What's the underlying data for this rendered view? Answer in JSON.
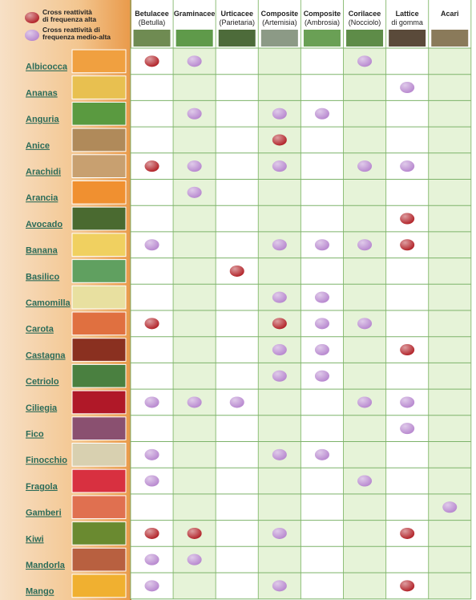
{
  "legend": [
    {
      "text": "Cross reattività\ndi frequenza alta",
      "color": "#b3262c"
    },
    {
      "text": "Cross reattività di\nfrequenza medio-alta",
      "color": "#b98ad0"
    }
  ],
  "columns": [
    {
      "name": "Betulacee",
      "sub": "(Betulla)"
    },
    {
      "name": "Graminacee"
    },
    {
      "name": "Urticacee",
      "sub": "(Parietaria)"
    },
    {
      "name": "Composite",
      "sub": "(Artemisia)"
    },
    {
      "name": "Composite",
      "sub": "(Ambrosia)"
    },
    {
      "name": "Corilacee",
      "sub": "(Nocciolo)"
    },
    {
      "name": "Lattice",
      "sub": "di gomma"
    },
    {
      "name": "Acari"
    }
  ],
  "rows": [
    {
      "name": "Albicocca",
      "cells": [
        0,
        1,
        null,
        null,
        null,
        1,
        null,
        null
      ]
    },
    {
      "name": "Ananas",
      "cells": [
        null,
        null,
        null,
        null,
        null,
        null,
        1,
        null
      ]
    },
    {
      "name": "Anguria",
      "cells": [
        null,
        1,
        null,
        1,
        1,
        null,
        null,
        null
      ]
    },
    {
      "name": "Anice",
      "cells": [
        null,
        null,
        null,
        0,
        null,
        null,
        null,
        null
      ]
    },
    {
      "name": "Arachidi",
      "cells": [
        0,
        1,
        null,
        1,
        null,
        1,
        1,
        null
      ]
    },
    {
      "name": "Arancia",
      "cells": [
        null,
        1,
        null,
        null,
        null,
        null,
        null,
        null
      ]
    },
    {
      "name": "Avocado",
      "cells": [
        null,
        null,
        null,
        null,
        null,
        null,
        0,
        null
      ]
    },
    {
      "name": "Banana",
      "cells": [
        1,
        null,
        null,
        1,
        1,
        1,
        0,
        null
      ]
    },
    {
      "name": "Basilico",
      "cells": [
        null,
        null,
        0,
        null,
        null,
        null,
        null,
        null
      ]
    },
    {
      "name": "Camomilla",
      "cells": [
        null,
        null,
        null,
        1,
        1,
        null,
        null,
        null
      ]
    },
    {
      "name": "Carota",
      "cells": [
        0,
        null,
        null,
        0,
        1,
        1,
        null,
        null
      ]
    },
    {
      "name": "Castagna",
      "cells": [
        null,
        null,
        null,
        1,
        1,
        null,
        0,
        null
      ]
    },
    {
      "name": "Cetriolo",
      "cells": [
        null,
        null,
        null,
        1,
        1,
        null,
        null,
        null
      ]
    },
    {
      "name": "Ciliegia",
      "cells": [
        1,
        1,
        1,
        null,
        null,
        1,
        1,
        null
      ]
    },
    {
      "name": "Fico",
      "cells": [
        null,
        null,
        null,
        null,
        null,
        null,
        1,
        null
      ]
    },
    {
      "name": "Finocchio",
      "cells": [
        1,
        null,
        null,
        1,
        1,
        null,
        null,
        null
      ]
    },
    {
      "name": "Fragola",
      "cells": [
        1,
        null,
        null,
        null,
        null,
        1,
        null,
        null
      ]
    },
    {
      "name": "Gamberi",
      "cells": [
        null,
        null,
        null,
        null,
        null,
        null,
        null,
        1
      ]
    },
    {
      "name": "Kiwi",
      "cells": [
        0,
        0,
        null,
        1,
        null,
        null,
        0,
        null
      ]
    },
    {
      "name": "Mandorla",
      "cells": [
        1,
        1,
        null,
        null,
        null,
        null,
        null,
        null
      ]
    },
    {
      "name": "Mango",
      "cells": [
        1,
        null,
        null,
        1,
        null,
        null,
        0,
        null
      ]
    }
  ]
}
